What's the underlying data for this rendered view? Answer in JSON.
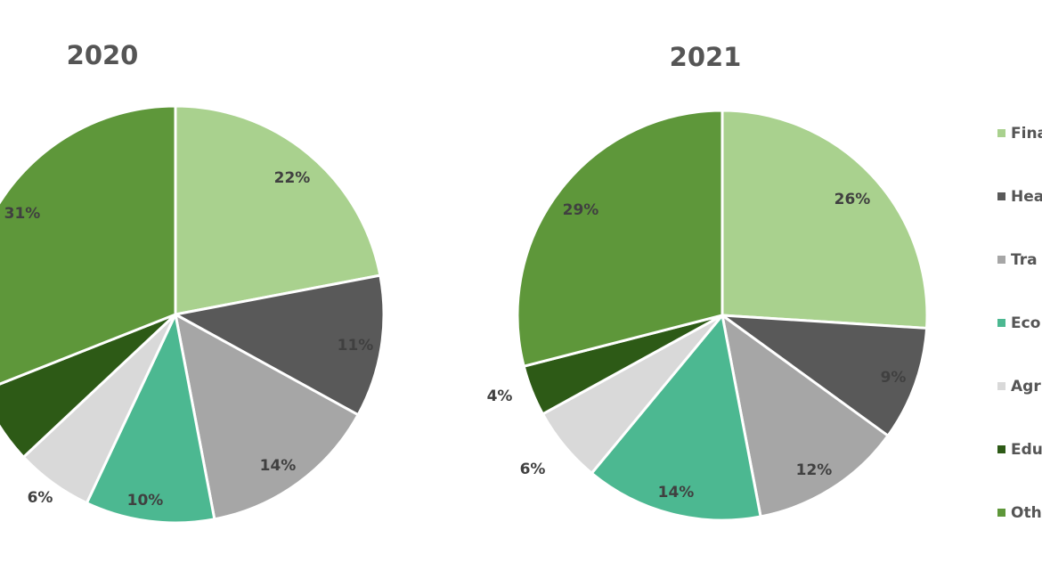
{
  "chart_data": [
    {
      "type": "pie",
      "title": "2020",
      "categories": [
        "Finance",
        "Health",
        "Transport",
        "Economy",
        "Agriculture",
        "Education",
        "Other"
      ],
      "values": [
        22,
        11,
        14,
        10,
        6,
        6,
        31
      ],
      "labels": [
        "22%",
        "11%",
        "14%",
        "10%",
        "6%",
        "",
        "31%"
      ]
    },
    {
      "type": "pie",
      "title": "2021",
      "categories": [
        "Finance",
        "Health",
        "Transport",
        "Economy",
        "Agriculture",
        "Education",
        "Other"
      ],
      "values": [
        26,
        9,
        12,
        14,
        6,
        4,
        29
      ],
      "labels": [
        "26%",
        "9%",
        "12%",
        "14%",
        "6%",
        "4%",
        "29%"
      ]
    }
  ],
  "legend": {
    "placement": "right",
    "items": [
      "Fina",
      "Hea",
      "Tra",
      "Eco",
      "Agr",
      "Edu",
      "Oth"
    ]
  },
  "colors": [
    "#a9d18e",
    "#595959",
    "#a6a6a6",
    "#4cb891",
    "#d9d9d9",
    "#2d5a16",
    "#5e973a"
  ]
}
